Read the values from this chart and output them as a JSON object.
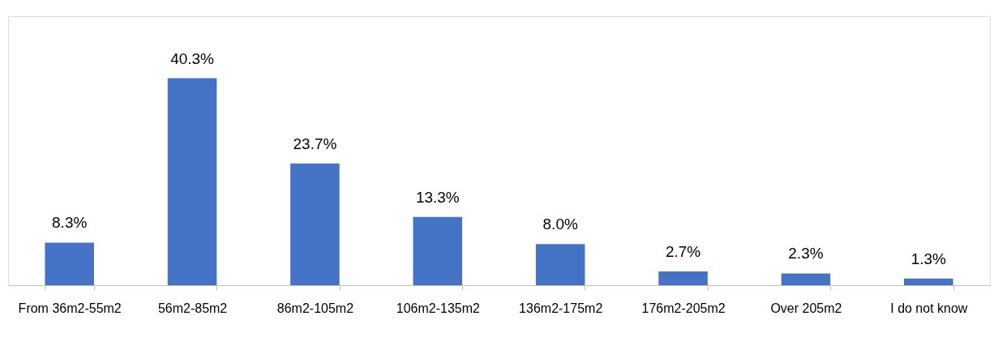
{
  "chart_data": {
    "type": "bar",
    "categories": [
      "From 36m2-55m2",
      "56m2-85m2",
      "86m2-105m2",
      "106m2-135m2",
      "136m2-175m2",
      "176m2-205m2",
      "Over 205m2",
      "I do not know"
    ],
    "values": [
      8.3,
      40.3,
      23.7,
      13.3,
      8.0,
      2.7,
      2.3,
      1.3
    ],
    "value_labels": [
      "8.3%",
      "40.3%",
      "23.7%",
      "13.3%",
      "8.0%",
      "2.7%",
      "2.3%",
      "1.3%"
    ],
    "color": "#4472c4",
    "grid": false
  }
}
